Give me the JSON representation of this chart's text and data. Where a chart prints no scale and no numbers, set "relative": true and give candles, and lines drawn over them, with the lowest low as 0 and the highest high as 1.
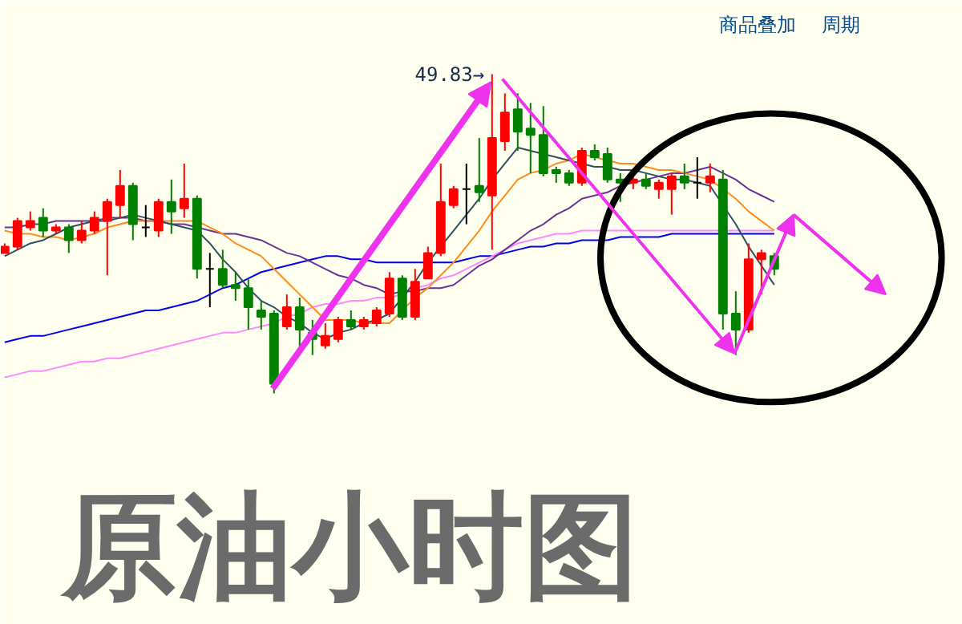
{
  "chart_data": {
    "type": "candlestick",
    "title": "原油小时图",
    "relative": true,
    "categories": [
      null,
      null,
      null,
      null,
      null,
      null,
      null,
      null,
      null,
      null,
      null,
      null,
      null,
      null,
      null,
      null,
      null,
      null,
      null,
      null,
      null,
      null,
      null,
      null,
      null,
      null,
      null,
      null,
      null,
      null,
      null,
      null,
      null,
      null,
      null,
      null,
      null,
      null,
      null,
      null,
      null,
      null,
      null,
      null,
      null,
      null,
      null,
      null,
      null,
      null,
      null,
      null,
      null,
      null,
      null,
      null,
      null,
      null,
      null,
      null,
      null
    ],
    "ohlc": [
      [
        0.44,
        0.47,
        0.44,
        0.46
      ],
      [
        0.46,
        0.55,
        0.45,
        0.54
      ],
      [
        0.52,
        0.57,
        0.51,
        0.54
      ],
      [
        0.55,
        0.58,
        0.49,
        0.51
      ],
      [
        0.51,
        0.53,
        0.5,
        0.52
      ],
      [
        0.52,
        0.53,
        0.44,
        0.48
      ],
      [
        0.48,
        0.54,
        0.47,
        0.51
      ],
      [
        0.51,
        0.57,
        0.5,
        0.55
      ],
      [
        0.54,
        0.61,
        0.37,
        0.6
      ],
      [
        0.59,
        0.7,
        0.55,
        0.65
      ],
      [
        0.65,
        0.66,
        0.48,
        0.53
      ],
      [
        0.52,
        0.59,
        0.49,
        0.52
      ],
      [
        0.51,
        0.61,
        0.49,
        0.6
      ],
      [
        0.6,
        0.67,
        0.5,
        0.57
      ],
      [
        0.58,
        0.72,
        0.55,
        0.61
      ],
      [
        0.61,
        0.62,
        0.36,
        0.39
      ],
      [
        0.39,
        0.44,
        0.27,
        0.39
      ],
      [
        0.39,
        0.45,
        0.33,
        0.34
      ],
      [
        0.34,
        0.38,
        0.29,
        0.33
      ],
      [
        0.33,
        0.36,
        0.2,
        0.27
      ],
      [
        0.26,
        0.29,
        0.2,
        0.24
      ],
      [
        0.25,
        0.26,
        0,
        0.03
      ],
      [
        0.21,
        0.31,
        0.2,
        0.27
      ],
      [
        0.27,
        0.3,
        0.14,
        0.2
      ],
      [
        0.19,
        0.23,
        0.12,
        0.17
      ],
      [
        0.15,
        0.22,
        0.14,
        0.18
      ],
      [
        0.17,
        0.24,
        0.16,
        0.23
      ],
      [
        0.23,
        0.26,
        0.2,
        0.21
      ],
      [
        0.21,
        0.24,
        0.2,
        0.23
      ],
      [
        0.22,
        0.27,
        0.21,
        0.26
      ],
      [
        0.25,
        0.38,
        0.24,
        0.36
      ],
      [
        0.36,
        0.37,
        0.23,
        0.24
      ],
      [
        0.24,
        0.39,
        0.23,
        0.35
      ],
      [
        0.36,
        0.46,
        0.36,
        0.44
      ],
      [
        0.44,
        0.72,
        0.43,
        0.6
      ],
      [
        0.59,
        0.65,
        0.58,
        0.64
      ],
      [
        0.64,
        0.72,
        0.53,
        0.64
      ],
      [
        0.65,
        0.8,
        0.6,
        0.63
      ],
      [
        0.62,
        1.0,
        0.45,
        0.8
      ],
      [
        0.79,
        0.94,
        0.76,
        0.88
      ],
      [
        0.89,
        0.94,
        0.76,
        0.82
      ],
      [
        0.83,
        0.91,
        0.69,
        0.81
      ],
      [
        0.81,
        0.9,
        0.68,
        0.69
      ],
      [
        0.7,
        0.71,
        0.66,
        0.69
      ],
      [
        0.69,
        0.7,
        0.65,
        0.66
      ],
      [
        0.66,
        0.77,
        0.65,
        0.76
      ],
      [
        0.76,
        0.78,
        0.73,
        0.74
      ],
      [
        0.75,
        0.77,
        0.66,
        0.67
      ],
      [
        0.67,
        0.69,
        0.6,
        0.66
      ],
      [
        0.66,
        0.68,
        0.64,
        0.67
      ],
      [
        0.67,
        0.69,
        0.64,
        0.65
      ],
      [
        0.64,
        0.67,
        0.61,
        0.66
      ],
      [
        0.64,
        0.69,
        0.56,
        0.68
      ],
      [
        0.68,
        0.72,
        0.64,
        0.66
      ],
      [
        0.66,
        0.74,
        0.61,
        0.66
      ],
      [
        0.66,
        0.72,
        0.63,
        0.68
      ],
      [
        0.67,
        0.7,
        0.2,
        0.25
      ],
      [
        0.25,
        0.32,
        0.12,
        0.2
      ],
      [
        0.2,
        0.47,
        0.19,
        0.42
      ],
      [
        0.42,
        0.45,
        0.31,
        0.44
      ],
      [
        0.43,
        0.44,
        0.37,
        0.39
      ]
    ],
    "colors": [
      "#ff0000",
      "#ff0000",
      "#ff0000",
      "#008000",
      "#ff0000",
      "#008000",
      "#ff0000",
      "#ff0000",
      "#ff0000",
      "#ff0000",
      "#008000",
      "#000000",
      "#ff0000",
      "#008000",
      "#ff0000",
      "#008000",
      "#000000",
      "#008000",
      "#008000",
      "#008000",
      "#008000",
      "#008000",
      "#ff0000",
      "#008000",
      "#008000",
      "#ff0000",
      "#ff0000",
      "#008000",
      "#ff0000",
      "#ff0000",
      "#ff0000",
      "#008000",
      "#ff0000",
      "#ff0000",
      "#ff0000",
      "#ff0000",
      "#000000",
      "#008000",
      "#ff0000",
      "#ff0000",
      "#008000",
      "#008000",
      "#008000",
      "#008000",
      "#008000",
      "#ff0000",
      "#008000",
      "#008000",
      "#008000",
      "#ff0000",
      "#008000",
      "#ff0000",
      "#ff0000",
      "#008000",
      "#000000",
      "#ff0000",
      "#008000",
      "#008000",
      "#ff0000",
      "#ff0000",
      "#008000"
    ],
    "series": [
      {
        "type": "line",
        "color": "#0000ee",
        "values": [
          0.16,
          0.17,
          0.18,
          0.18,
          0.19,
          0.2,
          0.21,
          0.22,
          0.23,
          0.24,
          0.25,
          0.26,
          0.26,
          0.27,
          0.28,
          0.29,
          0.31,
          0.33,
          0.34,
          0.36,
          0.38,
          0.39,
          0.4,
          0.41,
          0.42,
          0.43,
          0.43,
          0.42,
          0.42,
          0.41,
          0.41,
          0.41,
          0.41,
          0.41,
          0.41,
          0.41,
          0.42,
          0.43,
          0.43,
          0.44,
          0.45,
          0.46,
          0.46,
          0.47,
          0.47,
          0.48,
          0.48,
          0.48,
          0.49,
          0.49,
          0.49,
          0.49,
          0.5,
          0.5,
          0.5,
          0.5,
          0.5,
          0.5,
          0.5,
          0.5,
          0.5
        ]
      },
      {
        "type": "line",
        "color": "#ff88ff",
        "values": [
          0.05,
          0.06,
          0.07,
          0.07,
          0.08,
          0.09,
          0.1,
          0.1,
          0.11,
          0.11,
          0.12,
          0.13,
          0.14,
          0.15,
          0.16,
          0.17,
          0.18,
          0.19,
          0.19,
          0.2,
          0.21,
          0.22,
          0.24,
          0.25,
          0.27,
          0.28,
          0.28,
          0.29,
          0.29,
          0.3,
          0.3,
          0.31,
          0.33,
          0.34,
          0.36,
          0.37,
          0.39,
          0.41,
          0.43,
          0.45,
          0.47,
          0.48,
          0.49,
          0.5,
          0.5,
          0.51,
          0.51,
          0.51,
          0.51,
          0.51,
          0.51,
          0.51,
          0.51,
          0.51,
          0.51,
          0.51,
          0.51,
          0.51,
          0.51,
          0.51,
          0.51
        ]
      },
      {
        "type": "line",
        "color": "#663399",
        "values": [
          0.52,
          0.52,
          0.53,
          0.53,
          0.54,
          0.54,
          0.54,
          0.54,
          0.55,
          0.55,
          0.55,
          0.54,
          0.54,
          0.53,
          0.53,
          0.52,
          0.51,
          0.5,
          0.5,
          0.49,
          0.48,
          0.46,
          0.44,
          0.43,
          0.41,
          0.39,
          0.37,
          0.36,
          0.34,
          0.33,
          0.31,
          0.32,
          0.32,
          0.33,
          0.33,
          0.34,
          0.37,
          0.4,
          0.42,
          0.45,
          0.48,
          0.51,
          0.53,
          0.56,
          0.58,
          0.61,
          0.62,
          0.63,
          0.65,
          0.66,
          0.67,
          0.68,
          0.69,
          0.69,
          0.7,
          0.71,
          0.69,
          0.67,
          0.64,
          0.62,
          0.6
        ]
      },
      {
        "type": "line",
        "color": "#ff8c1a",
        "values": [
          0.51,
          0.5,
          0.5,
          0.49,
          0.49,
          0.48,
          0.49,
          0.5,
          0.52,
          0.53,
          0.54,
          0.54,
          0.54,
          0.54,
          0.54,
          0.54,
          0.52,
          0.5,
          0.47,
          0.45,
          0.43,
          0.39,
          0.35,
          0.31,
          0.27,
          0.23,
          0.23,
          0.23,
          0.22,
          0.22,
          0.22,
          0.26,
          0.3,
          0.33,
          0.37,
          0.41,
          0.46,
          0.51,
          0.57,
          0.62,
          0.67,
          0.69,
          0.7,
          0.72,
          0.73,
          0.75,
          0.74,
          0.73,
          0.72,
          0.72,
          0.71,
          0.7,
          0.7,
          0.69,
          0.68,
          0.67,
          0.64,
          0.61,
          0.57,
          0.54,
          0.51
        ]
      },
      {
        "type": "line",
        "color": "#2f5060",
        "values": [
          0.43,
          0.45,
          0.47,
          0.48,
          0.5,
          0.52,
          0.53,
          0.54,
          0.54,
          0.55,
          0.56,
          0.55,
          0.54,
          0.53,
          0.52,
          0.51,
          0.47,
          0.42,
          0.38,
          0.33,
          0.29,
          0.27,
          0.24,
          0.22,
          0.19,
          0.17,
          0.19,
          0.2,
          0.22,
          0.23,
          0.25,
          0.3,
          0.35,
          0.41,
          0.46,
          0.51,
          0.56,
          0.61,
          0.67,
          0.72,
          0.77,
          0.76,
          0.75,
          0.74,
          0.73,
          0.72,
          0.71,
          0.71,
          0.7,
          0.7,
          0.69,
          0.68,
          0.67,
          0.67,
          0.66,
          0.65,
          0.59,
          0.53,
          0.46,
          0.4,
          0.34
        ]
      }
    ],
    "annotations": [
      "商品叠加",
      "周期",
      "49.83→"
    ]
  }
}
